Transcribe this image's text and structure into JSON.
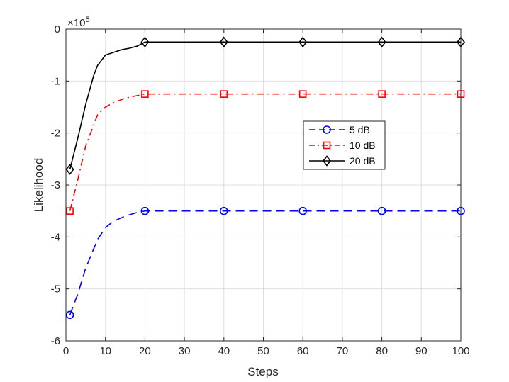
{
  "chart_data": {
    "type": "line",
    "xlabel": "Steps",
    "ylabel": "Likelihood",
    "exponent_prefix": "×10",
    "exponent_power": "5",
    "xlim": [
      0,
      100
    ],
    "ylim": [
      -6,
      0
    ],
    "xticks": [
      0,
      10,
      20,
      30,
      40,
      50,
      60,
      70,
      80,
      90,
      100
    ],
    "yticks": [
      0,
      -1,
      -2,
      -3,
      -4,
      -5,
      -6
    ],
    "grid": true,
    "legend_position": "center-right",
    "series": [
      {
        "name": "5 dB",
        "color": "#0000ff",
        "line_style": "dashed",
        "marker": "circle",
        "x": [
          1,
          3,
          5,
          8,
          10,
          12,
          15,
          18,
          20,
          25,
          30,
          40,
          50,
          60,
          70,
          80,
          90,
          100
        ],
        "y": [
          -5.5,
          -5.1,
          -4.6,
          -4.05,
          -3.82,
          -3.7,
          -3.6,
          -3.53,
          -3.5,
          -3.5,
          -3.5,
          -3.5,
          -3.5,
          -3.5,
          -3.5,
          -3.5,
          -3.5,
          -3.5
        ],
        "marker_x": [
          1,
          20,
          40,
          60,
          80,
          100
        ],
        "marker_y": [
          -5.5,
          -3.5,
          -3.5,
          -3.5,
          -3.5,
          -3.5
        ]
      },
      {
        "name": "10 dB",
        "color": "#ff0000",
        "line_style": "dashdot",
        "marker": "square",
        "x": [
          1,
          3,
          5,
          8,
          10,
          12,
          15,
          18,
          20,
          25,
          30,
          40,
          50,
          60,
          70,
          80,
          90,
          100
        ],
        "y": [
          -3.5,
          -2.9,
          -2.25,
          -1.65,
          -1.5,
          -1.42,
          -1.33,
          -1.28,
          -1.25,
          -1.25,
          -1.25,
          -1.25,
          -1.25,
          -1.25,
          -1.25,
          -1.25,
          -1.25,
          -1.25
        ],
        "marker_x": [
          1,
          20,
          40,
          60,
          80,
          100
        ],
        "marker_y": [
          -3.5,
          -1.25,
          -1.25,
          -1.25,
          -1.25,
          -1.25
        ]
      },
      {
        "name": "20 dB",
        "color": "#000000",
        "line_style": "solid",
        "marker": "diamond",
        "x": [
          1,
          3,
          5,
          7,
          8,
          10,
          12,
          14,
          16,
          18,
          20,
          25,
          30,
          40,
          50,
          60,
          70,
          80,
          90,
          100
        ],
        "y": [
          -2.7,
          -2.1,
          -1.45,
          -0.9,
          -0.7,
          -0.5,
          -0.45,
          -0.4,
          -0.37,
          -0.33,
          -0.25,
          -0.25,
          -0.25,
          -0.25,
          -0.25,
          -0.25,
          -0.25,
          -0.25,
          -0.25,
          -0.25
        ],
        "marker_x": [
          1,
          20,
          40,
          60,
          80,
          100
        ],
        "marker_y": [
          -2.7,
          -0.25,
          -0.25,
          -0.25,
          -0.25,
          -0.25
        ]
      }
    ]
  }
}
